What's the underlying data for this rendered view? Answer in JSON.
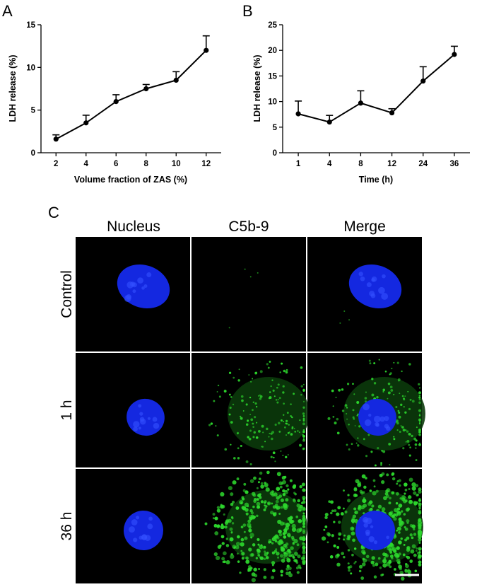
{
  "panels": {
    "a": "A",
    "b": "B",
    "c": "C"
  },
  "chart_data": [
    {
      "type": "line",
      "title": "",
      "xlabel": "Volume fraction of  ZAS (%)",
      "ylabel": "LDH release (%)",
      "categories": [
        "2",
        "4",
        "6",
        "8",
        "10",
        "12"
      ],
      "x": [
        2,
        4,
        6,
        8,
        10,
        12
      ],
      "values": [
        1.6,
        3.5,
        6.0,
        7.5,
        8.5,
        12.0
      ],
      "error_upper": [
        0.5,
        0.9,
        0.8,
        0.5,
        1.0,
        1.7
      ],
      "xlim": [
        1,
        13
      ],
      "ylim": [
        0,
        15
      ],
      "yticks": [
        0,
        5,
        10,
        15
      ],
      "grid": false,
      "color": "#000000"
    },
    {
      "type": "line",
      "title": "",
      "xlabel": "Time (h)",
      "ylabel": "LDH release (%)",
      "categories": [
        "1",
        "4",
        "8",
        "12",
        "24",
        "36"
      ],
      "values": [
        7.6,
        6.0,
        9.7,
        7.8,
        14.0,
        19.2
      ],
      "error_upper": [
        2.5,
        1.3,
        2.4,
        0.8,
        2.8,
        1.6
      ],
      "ylim": [
        0,
        25
      ],
      "yticks": [
        0,
        5,
        10,
        15,
        20,
        25
      ],
      "grid": false,
      "color": "#000000"
    }
  ],
  "microscopy": {
    "columns": [
      "Nucleus",
      "C5b-9",
      "Merge"
    ],
    "rows": [
      "Control",
      "1 h",
      "36 h"
    ],
    "nucleus_color": "#1428e0",
    "c5b9_color": "#2dd82d",
    "background_color": "#000000"
  }
}
